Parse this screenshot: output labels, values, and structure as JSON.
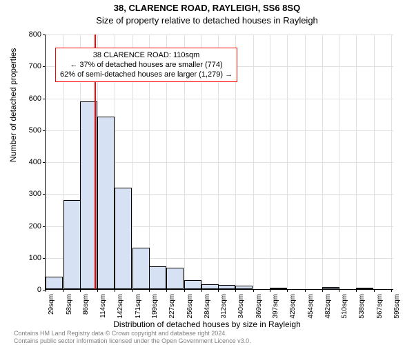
{
  "chart": {
    "type": "histogram",
    "address_title": "38, CLARENCE ROAD, RAYLEIGH, SS6 8SQ",
    "subtitle": "Size of property relative to detached houses in Rayleigh",
    "y_axis_label": "Number of detached properties",
    "x_axis_label": "Distribution of detached houses by size in Rayleigh",
    "title_fontsize": 13,
    "label_fontsize": 12,
    "tick_fontsize": 11,
    "background_color": "#ffffff",
    "grid_color": "#e0e0e0",
    "bar_fill": "#d6e1f3",
    "bar_border": "#000000",
    "ref_line_color": "#ff0000",
    "ref_line_x": 110,
    "annotation_border": "#ff0000",
    "annotation": {
      "line1": "38 CLARENCE ROAD: 110sqm",
      "line2": "← 37% of detached houses are smaller (774)",
      "line3": "62% of semi-detached houses are larger (1,279) →"
    },
    "xlim": [
      29,
      600
    ],
    "ylim": [
      0,
      800
    ],
    "y_ticks": [
      0,
      100,
      200,
      300,
      400,
      500,
      600,
      700,
      800
    ],
    "x_ticks": [
      29,
      58,
      86,
      114,
      142,
      171,
      199,
      227,
      256,
      284,
      312,
      340,
      369,
      397,
      425,
      454,
      482,
      510,
      538,
      567,
      595
    ],
    "x_tick_unit": "sqm",
    "bin_width": 28.3,
    "bars": [
      {
        "x0": 29,
        "count": 38
      },
      {
        "x0": 58,
        "count": 278
      },
      {
        "x0": 86,
        "count": 588
      },
      {
        "x0": 114,
        "count": 540
      },
      {
        "x0": 142,
        "count": 318
      },
      {
        "x0": 171,
        "count": 130
      },
      {
        "x0": 199,
        "count": 72
      },
      {
        "x0": 227,
        "count": 66
      },
      {
        "x0": 256,
        "count": 28
      },
      {
        "x0": 284,
        "count": 16
      },
      {
        "x0": 312,
        "count": 14
      },
      {
        "x0": 340,
        "count": 10
      },
      {
        "x0": 369,
        "count": 0
      },
      {
        "x0": 397,
        "count": 4
      },
      {
        "x0": 425,
        "count": 0
      },
      {
        "x0": 454,
        "count": 0
      },
      {
        "x0": 482,
        "count": 6
      },
      {
        "x0": 510,
        "count": 0
      },
      {
        "x0": 538,
        "count": 4
      },
      {
        "x0": 567,
        "count": 0
      }
    ],
    "footnote1": "Contains HM Land Registry data © Crown copyright and database right 2024.",
    "footnote2": "Contains public sector information licensed under the Open Government Licence v3.0."
  }
}
